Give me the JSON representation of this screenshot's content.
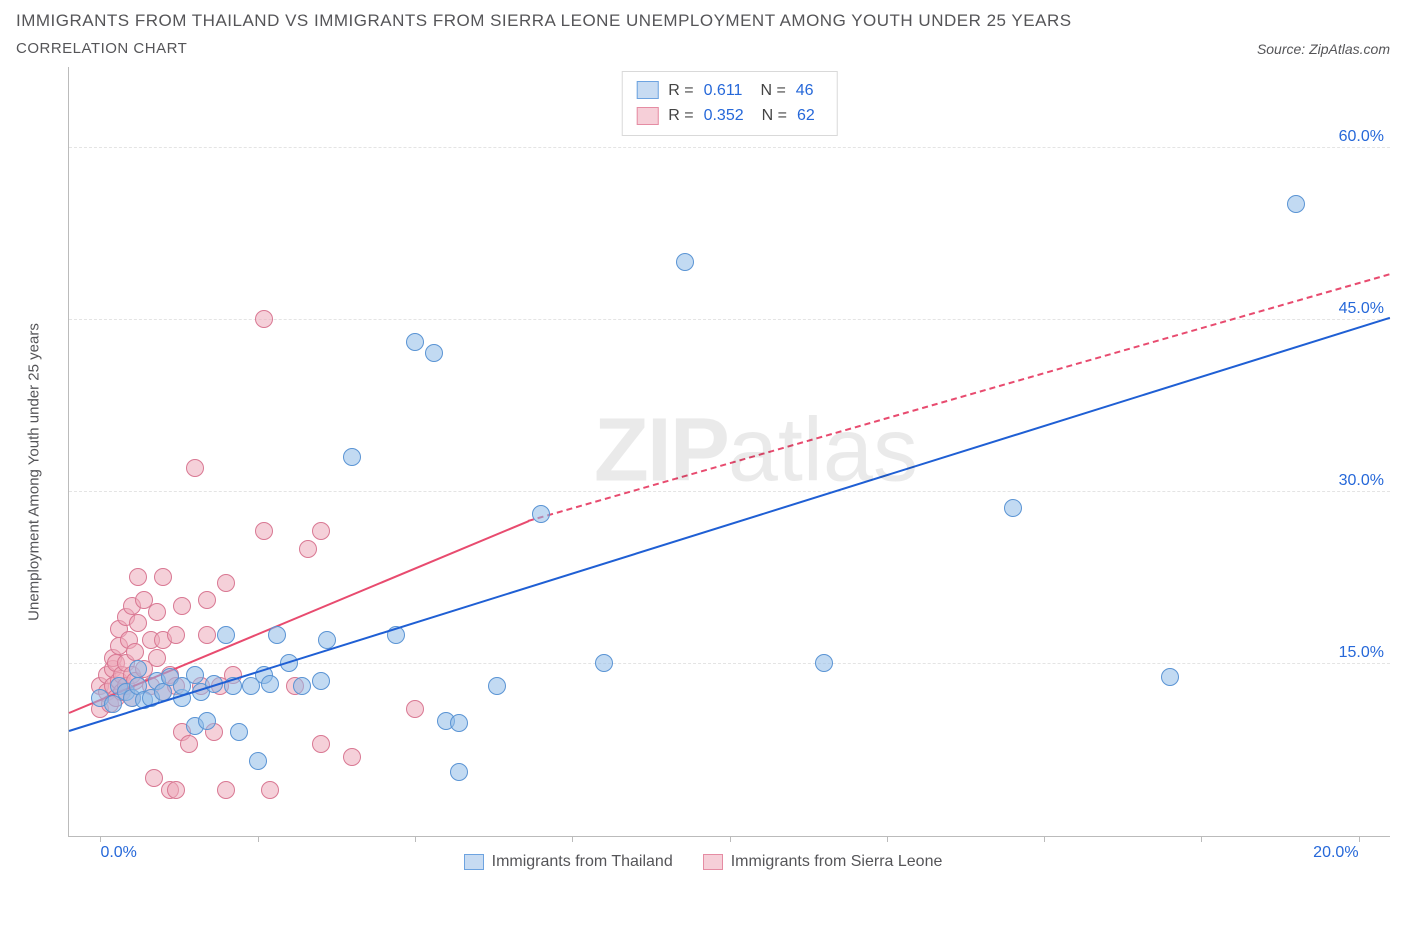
{
  "header": {
    "title": "IMMIGRANTS FROM THAILAND VS IMMIGRANTS FROM SIERRA LEONE UNEMPLOYMENT AMONG YOUTH UNDER 25 YEARS",
    "subtitle": "CORRELATION CHART",
    "source_label": "Source:",
    "source_value": "ZipAtlas.com"
  },
  "axes": {
    "y_label": "Unemployment Among Youth under 25 years",
    "y_ticks": [
      15.0,
      30.0,
      45.0,
      60.0
    ],
    "y_tick_labels": [
      "15.0%",
      "30.0%",
      "45.0%",
      "60.0%"
    ],
    "y_min": 0,
    "y_max": 67,
    "x_ticks": [
      0,
      2.5,
      5,
      7.5,
      10,
      12.5,
      15,
      17.5,
      20
    ],
    "x_tick_labels_shown": {
      "0": "0.0%",
      "20": "20.0%"
    },
    "x_min": -0.5,
    "x_max": 20.5,
    "grid_color": "#e4e4e4",
    "axis_color": "#bbbbbb",
    "tick_label_color": "#2668d9",
    "label_color": "#555558"
  },
  "legend_top": {
    "series": [
      {
        "color_fill": "#c7dbf2",
        "color_border": "#6da3e0",
        "r_label": "R =",
        "r_value": "0.611",
        "n_label": "N =",
        "n_value": "46"
      },
      {
        "color_fill": "#f6cfd8",
        "color_border": "#e58ca3",
        "r_label": "R =",
        "r_value": "0.352",
        "n_label": "N =",
        "n_value": "62"
      }
    ]
  },
  "legend_bottom": {
    "items": [
      {
        "label": "Immigrants from Thailand",
        "color_fill": "#c7dbf2",
        "color_border": "#6da3e0"
      },
      {
        "label": "Immigrants from Sierra Leone",
        "color_fill": "#f6cfd8",
        "color_border": "#e58ca3"
      }
    ]
  },
  "series": {
    "thailand": {
      "point_fill": "rgba(144,188,232,0.55)",
      "point_border": "#5a94d4",
      "point_radius": 9,
      "trend_color": "#1f5fd4",
      "trend_solid": {
        "x1": -0.5,
        "y1": 9.2,
        "x2": 20.5,
        "y2": 45.2
      },
      "trend_dash": null,
      "points": [
        [
          0.0,
          12.0
        ],
        [
          0.2,
          11.5
        ],
        [
          0.3,
          13.0
        ],
        [
          0.4,
          12.5
        ],
        [
          0.5,
          12.0
        ],
        [
          0.6,
          13.0
        ],
        [
          0.7,
          11.8
        ],
        [
          0.6,
          14.5
        ],
        [
          0.8,
          12.0
        ],
        [
          0.9,
          13.5
        ],
        [
          1.0,
          12.5
        ],
        [
          1.1,
          13.8
        ],
        [
          1.3,
          12.0
        ],
        [
          1.3,
          13.0
        ],
        [
          1.5,
          9.5
        ],
        [
          1.5,
          14.0
        ],
        [
          1.6,
          12.5
        ],
        [
          1.7,
          10.0
        ],
        [
          1.8,
          13.2
        ],
        [
          2.0,
          17.5
        ],
        [
          2.1,
          13.0
        ],
        [
          2.2,
          9.0
        ],
        [
          2.4,
          13.0
        ],
        [
          2.5,
          6.5
        ],
        [
          2.6,
          14.0
        ],
        [
          2.7,
          13.2
        ],
        [
          2.8,
          17.5
        ],
        [
          3.0,
          15.0
        ],
        [
          3.2,
          13.0
        ],
        [
          3.5,
          13.5
        ],
        [
          3.6,
          17.0
        ],
        [
          4.0,
          33.0
        ],
        [
          4.7,
          17.5
        ],
        [
          5.0,
          43.0
        ],
        [
          5.3,
          42.0
        ],
        [
          5.5,
          10.0
        ],
        [
          5.7,
          5.5
        ],
        [
          5.7,
          9.8
        ],
        [
          6.3,
          13.0
        ],
        [
          7.0,
          28.0
        ],
        [
          8.0,
          15.0
        ],
        [
          9.3,
          50.0
        ],
        [
          11.5,
          15.0
        ],
        [
          14.5,
          28.5
        ],
        [
          17.0,
          13.8
        ],
        [
          19.0,
          55.0
        ]
      ]
    },
    "sierra_leone": {
      "point_fill": "rgba(236,170,186,0.55)",
      "point_border": "#d97893",
      "point_radius": 9,
      "trend_color": "#e84b6f",
      "trend_solid": {
        "x1": -0.5,
        "y1": 10.8,
        "x2": 6.8,
        "y2": 27.5
      },
      "trend_dash": {
        "x1": 6.8,
        "y1": 27.5,
        "x2": 20.5,
        "y2": 49.0
      },
      "points": [
        [
          0.0,
          11.0
        ],
        [
          0.0,
          13.0
        ],
        [
          0.1,
          12.5
        ],
        [
          0.1,
          14.0
        ],
        [
          0.15,
          11.5
        ],
        [
          0.2,
          13.0
        ],
        [
          0.2,
          14.5
        ],
        [
          0.2,
          15.5
        ],
        [
          0.25,
          12.0
        ],
        [
          0.25,
          15.0
        ],
        [
          0.3,
          13.5
        ],
        [
          0.3,
          16.5
        ],
        [
          0.3,
          18.0
        ],
        [
          0.35,
          12.5
        ],
        [
          0.35,
          14.0
        ],
        [
          0.4,
          15.0
        ],
        [
          0.4,
          13.0
        ],
        [
          0.4,
          19.0
        ],
        [
          0.45,
          17.0
        ],
        [
          0.5,
          12.0
        ],
        [
          0.5,
          14.0
        ],
        [
          0.5,
          20.0
        ],
        [
          0.55,
          13.5
        ],
        [
          0.55,
          16.0
        ],
        [
          0.6,
          18.5
        ],
        [
          0.6,
          22.5
        ],
        [
          0.7,
          14.5
        ],
        [
          0.7,
          20.5
        ],
        [
          0.8,
          17.0
        ],
        [
          0.8,
          13.0
        ],
        [
          0.85,
          5.0
        ],
        [
          0.9,
          15.5
        ],
        [
          0.9,
          19.5
        ],
        [
          1.0,
          12.5
        ],
        [
          1.0,
          17.0
        ],
        [
          1.0,
          22.5
        ],
        [
          1.1,
          4.0
        ],
        [
          1.1,
          14.0
        ],
        [
          1.2,
          4.0
        ],
        [
          1.2,
          13.0
        ],
        [
          1.2,
          17.5
        ],
        [
          1.3,
          9.0
        ],
        [
          1.3,
          20.0
        ],
        [
          1.4,
          8.0
        ],
        [
          1.5,
          32.0
        ],
        [
          1.6,
          13.0
        ],
        [
          1.7,
          17.5
        ],
        [
          1.7,
          20.5
        ],
        [
          1.8,
          9.0
        ],
        [
          1.9,
          13.0
        ],
        [
          2.0,
          4.0
        ],
        [
          2.0,
          22.0
        ],
        [
          2.1,
          14.0
        ],
        [
          2.6,
          26.5
        ],
        [
          2.6,
          45.0
        ],
        [
          2.7,
          4.0
        ],
        [
          3.1,
          13.0
        ],
        [
          3.3,
          25.0
        ],
        [
          3.5,
          8.0
        ],
        [
          3.5,
          26.5
        ],
        [
          4.0,
          6.8
        ],
        [
          5.0,
          11.0
        ]
      ]
    }
  },
  "watermark": {
    "text_bold": "ZIP",
    "text_light": "atlas"
  }
}
